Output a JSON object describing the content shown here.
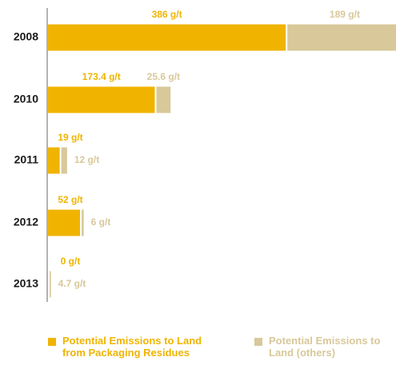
{
  "chart_data": {
    "type": "stacked_barh",
    "categories": [
      "2008",
      "2010",
      "2011",
      "2012",
      "2013"
    ],
    "series": [
      {
        "name": "Potential Emissions to Land from Packaging Residues",
        "color": "#f0b400",
        "values": [
          386,
          173.4,
          19,
          52,
          0
        ],
        "value_labels": [
          "386 g/t",
          "173.4 g/t",
          "19 g/t",
          "52 g/t",
          "0 g/t"
        ]
      },
      {
        "name": "Potential Emissions to Land (others)",
        "color": "#d8c89a",
        "values": [
          189,
          25.6,
          12,
          6,
          4.7
        ],
        "value_labels": [
          "189 g/t",
          "25.6 g/t",
          "12 g/t",
          "6 g/t",
          "4.7 g/t"
        ]
      }
    ],
    "xlim": [
      0,
      565
    ]
  }
}
